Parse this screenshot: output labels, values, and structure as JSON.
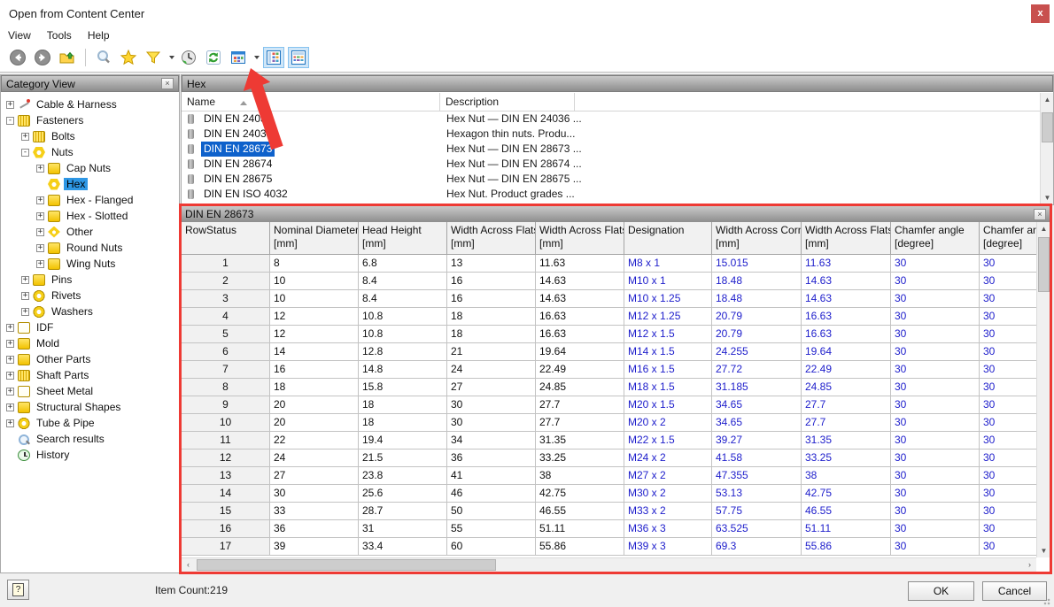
{
  "window": {
    "title": "Open from Content Center",
    "close_glyph": "x"
  },
  "menu": {
    "items": [
      "View",
      "Tools",
      "Help"
    ]
  },
  "toolbar": {
    "icons": [
      "back-icon",
      "forward-icon",
      "up-folder-icon",
      "search-icon",
      "favorites-star-icon",
      "filter-funnel-icon",
      "history-clock-icon",
      "refresh-icon",
      "views-menu-icon",
      "thumbnail-view-icon",
      "detail-view-icon"
    ]
  },
  "tree": {
    "header": "Category View",
    "close_glyph": "×",
    "items": [
      {
        "key": "cable-harness",
        "label": "Cable & Harness",
        "level": 0,
        "expander": "+",
        "icon": "cable",
        "selected": false
      },
      {
        "key": "fasteners",
        "label": "Fasteners",
        "level": 0,
        "expander": "-",
        "icon": "stripes",
        "selected": false
      },
      {
        "key": "bolts",
        "label": "Bolts",
        "level": 1,
        "expander": "+",
        "icon": "stripes",
        "selected": false
      },
      {
        "key": "nuts",
        "label": "Nuts",
        "level": 1,
        "expander": "-",
        "icon": "hexnut",
        "selected": false
      },
      {
        "key": "cap-nuts",
        "label": "Cap Nuts",
        "level": 2,
        "expander": "+",
        "icon": "box",
        "selected": false
      },
      {
        "key": "hex",
        "label": "Hex",
        "level": 2,
        "expander": null,
        "icon": "hexnut",
        "selected": true
      },
      {
        "key": "hex-flanged",
        "label": "Hex - Flanged",
        "level": 2,
        "expander": "+",
        "icon": "box",
        "selected": false
      },
      {
        "key": "hex-slotted",
        "label": "Hex - Slotted",
        "level": 2,
        "expander": "+",
        "icon": "box",
        "selected": false
      },
      {
        "key": "other",
        "label": "Other",
        "level": 2,
        "expander": "+",
        "icon": "diamond",
        "selected": false
      },
      {
        "key": "round-nuts",
        "label": "Round Nuts",
        "level": 2,
        "expander": "+",
        "icon": "box",
        "selected": false
      },
      {
        "key": "wing-nuts",
        "label": "Wing Nuts",
        "level": 2,
        "expander": "+",
        "icon": "box",
        "selected": false
      },
      {
        "key": "pins",
        "label": "Pins",
        "level": 1,
        "expander": "+",
        "icon": "box",
        "selected": false
      },
      {
        "key": "rivets",
        "label": "Rivets",
        "level": 1,
        "expander": "+",
        "icon": "ring",
        "selected": false
      },
      {
        "key": "washers",
        "label": "Washers",
        "level": 1,
        "expander": "+",
        "icon": "ring",
        "selected": false
      },
      {
        "key": "idf",
        "label": "IDF",
        "level": 0,
        "expander": "+",
        "icon": "grid",
        "selected": false
      },
      {
        "key": "mold",
        "label": "Mold",
        "level": 0,
        "expander": "+",
        "icon": "box",
        "selected": false
      },
      {
        "key": "other-parts",
        "label": "Other Parts",
        "level": 0,
        "expander": "+",
        "icon": "box",
        "selected": false
      },
      {
        "key": "shaft-parts",
        "label": "Shaft Parts",
        "level": 0,
        "expander": "+",
        "icon": "stripes",
        "selected": false
      },
      {
        "key": "sheet-metal",
        "label": "Sheet Metal",
        "level": 0,
        "expander": "+",
        "icon": "grid",
        "selected": false
      },
      {
        "key": "structural-shapes",
        "label": "Structural Shapes",
        "level": 0,
        "expander": "+",
        "icon": "box",
        "selected": false
      },
      {
        "key": "tube-pipe",
        "label": "Tube & Pipe",
        "level": 0,
        "expander": "+",
        "icon": "ring",
        "selected": false
      },
      {
        "key": "search-results",
        "label": "Search results",
        "level": 0,
        "expander": null,
        "icon": "search",
        "selected": false
      },
      {
        "key": "history",
        "label": "History",
        "level": 0,
        "expander": null,
        "icon": "clock",
        "selected": false
      }
    ]
  },
  "list": {
    "header": "Hex",
    "columns": [
      "Name",
      "Description"
    ],
    "rows": [
      {
        "name": "DIN EN 24036",
        "desc": "Hex Nut — DIN EN 24036 ...",
        "selected": false
      },
      {
        "name": "DIN EN 24036",
        "desc": "Hexagon thin nuts. Produ...",
        "selected": false
      },
      {
        "name": "DIN EN 28673",
        "desc": "Hex Nut — DIN EN 28673 ...",
        "selected": true
      },
      {
        "name": "DIN EN 28674",
        "desc": "Hex Nut — DIN EN 28674 ...",
        "selected": false
      },
      {
        "name": "DIN EN 28675",
        "desc": "Hex Nut — DIN EN 28675 ...",
        "selected": false
      },
      {
        "name": "DIN EN ISO 4032",
        "desc": "Hex Nut. Product grades ...",
        "selected": false
      }
    ]
  },
  "table": {
    "header": "DIN EN 28673",
    "close_glyph": "×",
    "columns": [
      {
        "title": "RowStatus",
        "unit": ""
      },
      {
        "title": "Nominal Diameter",
        "unit": "[mm]"
      },
      {
        "title": "Head Height",
        "unit": "[mm]"
      },
      {
        "title": "Width Across Flats",
        "unit": "[mm]"
      },
      {
        "title": "Width Across Flats",
        "unit": "[mm]"
      },
      {
        "title": "Designation",
        "unit": ""
      },
      {
        "title": "Width Across Corner",
        "unit": "[mm]"
      },
      {
        "title": "Width Across Flats",
        "unit": "[mm]"
      },
      {
        "title": "Chamfer angle",
        "unit": "[degree]"
      },
      {
        "title": "Chamfer angle",
        "unit": "[degree]"
      }
    ],
    "rows": [
      [
        "1",
        "8",
        "6.8",
        "13",
        "11.63",
        "M8 x 1",
        "15.015",
        "11.63",
        "30",
        "30"
      ],
      [
        "2",
        "10",
        "8.4",
        "16",
        "14.63",
        "M10 x 1",
        "18.48",
        "14.63",
        "30",
        "30"
      ],
      [
        "3",
        "10",
        "8.4",
        "16",
        "14.63",
        "M10 x 1.25",
        "18.48",
        "14.63",
        "30",
        "30"
      ],
      [
        "4",
        "12",
        "10.8",
        "18",
        "16.63",
        "M12 x 1.25",
        "20.79",
        "16.63",
        "30",
        "30"
      ],
      [
        "5",
        "12",
        "10.8",
        "18",
        "16.63",
        "M12 x 1.5",
        "20.79",
        "16.63",
        "30",
        "30"
      ],
      [
        "6",
        "14",
        "12.8",
        "21",
        "19.64",
        "M14 x 1.5",
        "24.255",
        "19.64",
        "30",
        "30"
      ],
      [
        "7",
        "16",
        "14.8",
        "24",
        "22.49",
        "M16 x 1.5",
        "27.72",
        "22.49",
        "30",
        "30"
      ],
      [
        "8",
        "18",
        "15.8",
        "27",
        "24.85",
        "M18 x 1.5",
        "31.185",
        "24.85",
        "30",
        "30"
      ],
      [
        "9",
        "20",
        "18",
        "30",
        "27.7",
        "M20 x 1.5",
        "34.65",
        "27.7",
        "30",
        "30"
      ],
      [
        "10",
        "20",
        "18",
        "30",
        "27.7",
        "M20 x 2",
        "34.65",
        "27.7",
        "30",
        "30"
      ],
      [
        "11",
        "22",
        "19.4",
        "34",
        "31.35",
        "M22 x 1.5",
        "39.27",
        "31.35",
        "30",
        "30"
      ],
      [
        "12",
        "24",
        "21.5",
        "36",
        "33.25",
        "M24 x 2",
        "41.58",
        "33.25",
        "30",
        "30"
      ],
      [
        "13",
        "27",
        "23.8",
        "41",
        "38",
        "M27 x 2",
        "47.355",
        "38",
        "30",
        "30"
      ],
      [
        "14",
        "30",
        "25.6",
        "46",
        "42.75",
        "M30 x 2",
        "53.13",
        "42.75",
        "30",
        "30"
      ],
      [
        "15",
        "33",
        "28.7",
        "50",
        "46.55",
        "M33 x 2",
        "57.75",
        "46.55",
        "30",
        "30"
      ],
      [
        "16",
        "36",
        "31",
        "55",
        "51.11",
        "M36 x 3",
        "63.525",
        "51.11",
        "30",
        "30"
      ],
      [
        "17",
        "39",
        "33.4",
        "60",
        "55.86",
        "M39 x 3",
        "69.3",
        "55.86",
        "30",
        "30"
      ]
    ]
  },
  "status": {
    "item_count": "Item Count:219",
    "ok_label": "OK",
    "cancel_label": "Cancel",
    "help_glyph": "?"
  },
  "colors": {
    "annotation_red": "#ee3a34",
    "selection_blue": "#0e61cb",
    "tree_selection": "#2e97e5",
    "data_blue": "#2020cc"
  }
}
